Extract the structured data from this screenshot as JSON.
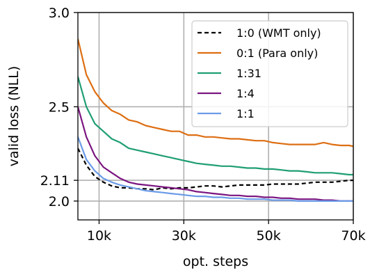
{
  "chart_data": {
    "type": "line",
    "xlabel": "opt. steps",
    "ylabel": "valid loss (NLL)",
    "xlim": [
      5000,
      70000
    ],
    "ylim": [
      1.9,
      3.0
    ],
    "x_ticks": [
      10000,
      30000,
      50000,
      70000
    ],
    "x_tick_labels": [
      "10k",
      "30k",
      "50k",
      "70k"
    ],
    "y_ticks": [
      2.0,
      2.11,
      2.5,
      3.0
    ],
    "y_tick_labels": [
      "2.0",
      "2.11",
      "2.5",
      "3.0"
    ],
    "grid": true,
    "legend_position": "top-right",
    "x": [
      5000,
      7000,
      9000,
      11000,
      13000,
      15000,
      17000,
      19000,
      21000,
      23000,
      25000,
      27000,
      29000,
      31000,
      33000,
      35000,
      37000,
      39000,
      41000,
      43000,
      45000,
      47000,
      49000,
      51000,
      53000,
      55000,
      57000,
      59000,
      61000,
      63000,
      65000,
      67000,
      69000,
      70000
    ],
    "series": [
      {
        "name": "1:0 (WMT only)",
        "color": "#000000",
        "dash": "dashed",
        "values": [
          2.28,
          2.19,
          2.13,
          2.1,
          2.08,
          2.07,
          2.07,
          2.065,
          2.065,
          2.06,
          2.07,
          2.065,
          2.07,
          2.07,
          2.075,
          2.08,
          2.08,
          2.075,
          2.08,
          2.085,
          2.085,
          2.085,
          2.085,
          2.09,
          2.09,
          2.09,
          2.09,
          2.095,
          2.1,
          2.1,
          2.1,
          2.105,
          2.11,
          2.11
        ]
      },
      {
        "name": "0:1 (Para only)",
        "color": "#dd6e12",
        "dash": "solid",
        "values": [
          2.86,
          2.67,
          2.58,
          2.52,
          2.48,
          2.46,
          2.43,
          2.42,
          2.4,
          2.39,
          2.38,
          2.37,
          2.37,
          2.35,
          2.35,
          2.34,
          2.34,
          2.335,
          2.33,
          2.33,
          2.325,
          2.32,
          2.32,
          2.31,
          2.305,
          2.3,
          2.3,
          2.3,
          2.3,
          2.31,
          2.3,
          2.295,
          2.295,
          2.29
        ]
      },
      {
        "name": "1:31",
        "color": "#1f9e74",
        "dash": "solid",
        "values": [
          2.66,
          2.5,
          2.41,
          2.37,
          2.33,
          2.31,
          2.28,
          2.27,
          2.26,
          2.25,
          2.24,
          2.23,
          2.22,
          2.21,
          2.2,
          2.195,
          2.19,
          2.185,
          2.185,
          2.18,
          2.175,
          2.175,
          2.17,
          2.17,
          2.165,
          2.16,
          2.16,
          2.155,
          2.15,
          2.15,
          2.15,
          2.145,
          2.14,
          2.14
        ]
      },
      {
        "name": "1:4",
        "color": "#7b1580",
        "dash": "solid",
        "values": [
          2.5,
          2.34,
          2.24,
          2.18,
          2.15,
          2.12,
          2.1,
          2.09,
          2.085,
          2.08,
          2.075,
          2.07,
          2.065,
          2.06,
          2.05,
          2.045,
          2.04,
          2.035,
          2.03,
          2.03,
          2.025,
          2.025,
          2.02,
          2.02,
          2.015,
          2.015,
          2.01,
          2.01,
          2.01,
          2.005,
          2.005,
          2.0,
          2.0,
          2.0
        ]
      },
      {
        "name": "1:1",
        "color": "#6b9be8",
        "dash": "solid",
        "values": [
          2.34,
          2.22,
          2.16,
          2.12,
          2.1,
          2.085,
          2.075,
          2.065,
          2.055,
          2.05,
          2.045,
          2.04,
          2.035,
          2.03,
          2.025,
          2.025,
          2.02,
          2.02,
          2.015,
          2.015,
          2.01,
          2.01,
          2.01,
          2.005,
          2.005,
          2.005,
          2.0,
          2.0,
          2.0,
          2.0,
          2.0,
          2.0,
          2.0,
          2.0
        ]
      }
    ]
  }
}
